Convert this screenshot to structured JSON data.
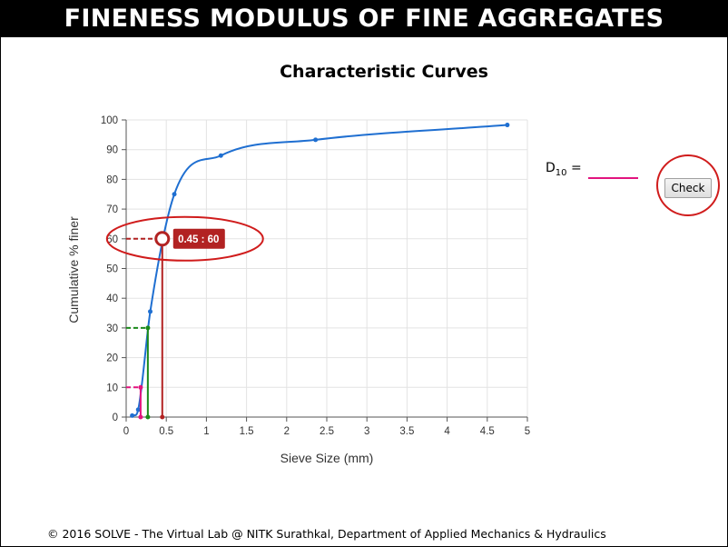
{
  "header": {
    "title": "FINENESS MODULUS OF FINE AGGREGATES"
  },
  "chart_data": {
    "type": "line",
    "title": "Characteristic Curves",
    "xlabel": "Sieve Size (mm)",
    "ylabel": "Cumulative % finer",
    "xlim": [
      0,
      5
    ],
    "ylim": [
      0,
      100
    ],
    "xticks": [
      "0",
      "0.5",
      "1",
      "1.5",
      "2",
      "2.5",
      "3",
      "3.5",
      "4",
      "4.5",
      "5"
    ],
    "yticks": [
      "0",
      "10",
      "20",
      "30",
      "40",
      "50",
      "60",
      "70",
      "80",
      "90",
      "100"
    ],
    "grid": true,
    "legend": "none",
    "series": [
      {
        "color": "#1f6fd1",
        "x": [
          0.075,
          0.15,
          0.3,
          0.6,
          1.18,
          2.36,
          4.75
        ],
        "y": [
          0.5,
          2.5,
          35.5,
          75,
          88,
          93.3,
          98.3
        ]
      }
    ],
    "markers": [
      {
        "x": 0.18,
        "y": 10,
        "color": "#e2147e"
      },
      {
        "x": 0.27,
        "y": 30,
        "color": "#1a8a1a"
      },
      {
        "x": 0.45,
        "y": 60,
        "color": "#b22222"
      }
    ],
    "tooltip": {
      "x": 0.45,
      "y": 60,
      "text": "0.45 : 60",
      "color": "#b22222"
    }
  },
  "d10": {
    "label": "D",
    "subscript": "10",
    "equals": " =",
    "value": ""
  },
  "check_button": {
    "label": "Check"
  },
  "accent": {
    "highlight": "#d01c1c"
  },
  "footer": {
    "text": "© 2016 SOLVE - The Virtual Lab @ NITK Surathkal, Department of Applied Mechanics & Hydraulics"
  }
}
